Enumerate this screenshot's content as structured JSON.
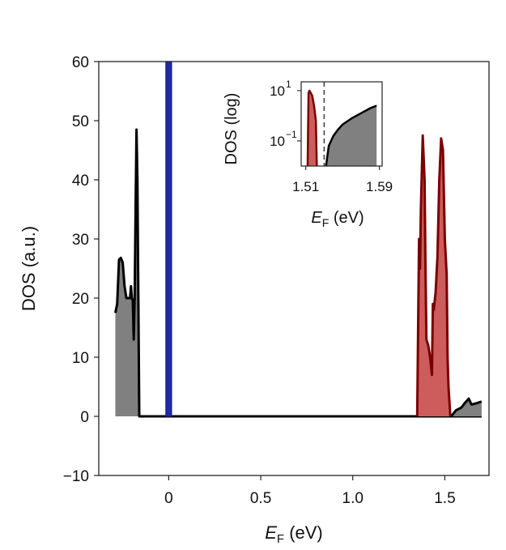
{
  "chart_data": [
    {
      "type": "area",
      "title": "",
      "xlabel": {
        "main": "E",
        "sub": "F",
        "unit": " (eV)"
      },
      "ylabel": "DOS (a.u.)",
      "xlim": [
        -0.38,
        1.74
      ],
      "ylim": [
        -10,
        60
      ],
      "xticks": [
        0,
        0.5,
        1.0,
        1.5
      ],
      "xtick_labels": [
        "0",
        "0.5",
        "1.0",
        "1.5"
      ],
      "yticks": [
        -10,
        0,
        10,
        20,
        30,
        40,
        50,
        60
      ],
      "ytick_labels": [
        "−10",
        "0",
        "10",
        "20",
        "30",
        "40",
        "50",
        "60"
      ],
      "grid": false,
      "series": [
        {
          "fill": "#808080",
          "line": "#000000",
          "points": [
            [
              -0.29,
              17.5
            ],
            [
              -0.28,
              19
            ],
            [
              -0.27,
              26.5
            ],
            [
              -0.26,
              26.8
            ],
            [
              -0.25,
              26
            ],
            [
              -0.24,
              22
            ],
            [
              -0.23,
              20
            ],
            [
              -0.22,
              20
            ],
            [
              -0.21,
              20
            ],
            [
              -0.205,
              22
            ],
            [
              -0.2,
              20
            ],
            [
              -0.195,
              19.5
            ],
            [
              -0.19,
              13
            ],
            [
              -0.185,
              20
            ],
            [
              -0.18,
              35
            ],
            [
              -0.175,
              48.5
            ],
            [
              -0.17,
              40
            ],
            [
              -0.165,
              20
            ],
            [
              -0.16,
              0
            ],
            [
              1.7,
              0
            ]
          ]
        },
        {
          "fill": "#808080",
          "line": "#000000",
          "points": [
            [
              1.535,
              0
            ],
            [
              1.56,
              1
            ],
            [
              1.59,
              1.5
            ],
            [
              1.61,
              2.3
            ],
            [
              1.63,
              3
            ],
            [
              1.645,
              2
            ],
            [
              1.67,
              2.2
            ],
            [
              1.7,
              2.5
            ]
          ]
        },
        {
          "fill": "#cd5c5c",
          "line": "#7b0000",
          "points": [
            [
              1.35,
              0
            ],
            [
              1.36,
              30
            ],
            [
              1.365,
              25
            ],
            [
              1.37,
              35
            ],
            [
              1.38,
              47.5
            ],
            [
              1.39,
              40
            ],
            [
              1.395,
              25
            ],
            [
              1.4,
              13
            ],
            [
              1.41,
              12
            ],
            [
              1.42,
              10
            ],
            [
              1.43,
              7
            ],
            [
              1.435,
              19
            ],
            [
              1.44,
              18
            ],
            [
              1.45,
              21
            ],
            [
              1.46,
              27
            ],
            [
              1.47,
              40
            ],
            [
              1.48,
              47
            ],
            [
              1.49,
              45
            ],
            [
              1.5,
              30
            ],
            [
              1.51,
              24
            ],
            [
              1.515,
              10
            ],
            [
              1.52,
              5
            ],
            [
              1.53,
              0
            ]
          ]
        }
      ],
      "bar": {
        "x": 0,
        "top": 60,
        "color": "#1f2aa8",
        "edge": "#1a1a7a"
      }
    },
    {
      "type": "area",
      "title": "",
      "ylabel": "DOS (log)",
      "xlabel": {
        "main": "E",
        "sub": "F",
        "unit": " (eV)"
      },
      "xlim": [
        1.505,
        1.593
      ],
      "ylim_log": [
        -2.0,
        1.35
      ],
      "xticks": [
        1.51,
        1.59
      ],
      "xtick_labels": [
        "1.51",
        "1.59"
      ],
      "yticks_log": [
        1,
        -1
      ],
      "ytick_labels": [
        {
          "base": "10",
          "exp": "1"
        },
        {
          "base": "10",
          "exp": "−1"
        }
      ],
      "fermi_line_x": 1.53,
      "grid": false,
      "series": [
        {
          "fill": "#cd5c5c",
          "line": "#7b0000",
          "points": [
            [
              1.512,
              -2.0
            ],
            [
              1.513,
              0.9
            ],
            [
              1.514,
              1.0
            ],
            [
              1.517,
              0.8
            ],
            [
              1.519,
              0.4
            ],
            [
              1.521,
              -0.2
            ],
            [
              1.522,
              -2.0
            ]
          ]
        },
        {
          "fill": "#808080",
          "line": "#000000",
          "points": [
            [
              1.532,
              -2.0
            ],
            [
              1.535,
              -1.2
            ],
            [
              1.54,
              -0.8
            ],
            [
              1.545,
              -0.55
            ],
            [
              1.55,
              -0.35
            ],
            [
              1.56,
              -0.1
            ],
            [
              1.57,
              0.1
            ],
            [
              1.58,
              0.3
            ],
            [
              1.587,
              0.4
            ]
          ]
        }
      ]
    }
  ]
}
